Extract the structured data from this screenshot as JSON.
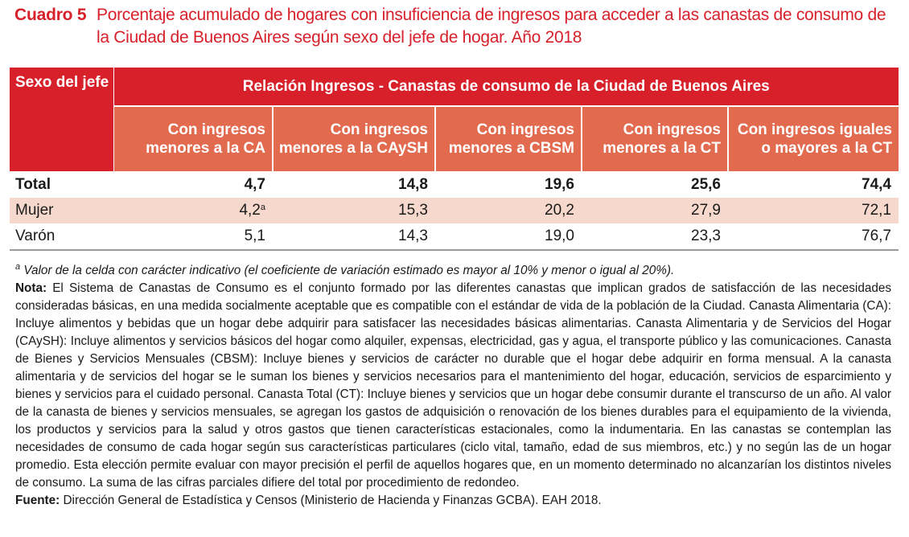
{
  "title": {
    "label": "Cuadro 5",
    "text": "Porcentaje acumulado de hogares con insuficiencia de ingresos para acceder a las canastas de consumo de la Ciudad de Buenos Aires según sexo del jefe de hogar. Año 2018"
  },
  "table": {
    "row_header": "Sexo del jefe",
    "group_header": "Relación Ingresos - Canastas de consumo de la Ciudad de Buenos Aires",
    "columns": [
      "Con ingresos menores a la CA",
      "Con ingresos menores a la CAySH",
      "Con ingresos menores a CBSM",
      "Con ingresos menores a la CT",
      "Con ingresos iguales o mayores a la CT"
    ],
    "rows": [
      {
        "label": "Total",
        "values": [
          "4,7",
          "14,8",
          "19,6",
          "25,6",
          "74,4"
        ]
      },
      {
        "label": "Mujer",
        "values": [
          "4,2",
          "15,3",
          "20,2",
          "27,9",
          "72,1"
        ],
        "first_value_note": "a"
      },
      {
        "label": "Varón",
        "values": [
          "5,1",
          "14,3",
          "19,0",
          "23,3",
          "76,7"
        ]
      }
    ]
  },
  "footnotes": {
    "a_marker": "a",
    "a_text": "Valor de la celda con carácter indicativo (el coeficiente de variación estimado es mayor al 10% y menor o igual al 20%).",
    "nota_label": "Nota:",
    "nota_text": "El Sistema de Canastas de Consumo es el conjunto formado por las diferentes canastas que implican grados de satisfacción de las necesidades consideradas básicas, en una medida socialmente aceptable que es compatible con el estándar de vida de la población de la Ciudad. Canasta Alimentaria (CA): Incluye alimentos y bebidas que un hogar debe adquirir para satisfacer las necesidades básicas alimentarias. Canasta Alimentaria y de Servicios del Hogar (CAySH): Incluye alimentos y servicios básicos del hogar como alquiler, expensas, electricidad, gas y agua, el transporte público y las comunicaciones. Canasta de Bienes y Servicios Mensuales (CBSM): Incluye bienes y servicios de carácter no durable que el hogar debe adquirir en forma mensual. A la canasta alimentaria y de servicios del hogar se le suman los bienes y servicios necesarios para el mantenimiento del hogar, educación, servicios de esparcimiento y bienes y servicios para el cuidado personal. Canasta Total (CT): Incluye bienes y servicios que un hogar debe consumir durante el transcurso de un año. Al valor de la canasta de bienes y servicios mensuales, se agregan los gastos de adquisición o renovación de los bienes durables para el equipamiento de la vivienda, los productos y servicios para la salud y otros gastos que tienen características estacionales, como la indumentaria. En las canastas se contemplan las necesidades de consumo de cada hogar según sus características particulares (ciclo vital, tamaño, edad de sus miembros, etc.) y no según las de un hogar promedio. Esta elección permite evaluar con mayor precisión el perfil de aquellos hogares que, en un momento determinado no alcanzarían los distintos niveles de consumo. La suma de las cifras parciales difiere del total por procedimiento de redondeo.",
    "fuente_label": "Fuente:",
    "fuente_text": "Dirección General de Estadística y Censos (Ministerio de Hacienda y Finanzas GCBA). EAH 2018."
  },
  "colors": {
    "accent_red": "#d7202a",
    "subheader_salmon": "#e26a4f",
    "highlight_row": "#f6d9cc"
  }
}
